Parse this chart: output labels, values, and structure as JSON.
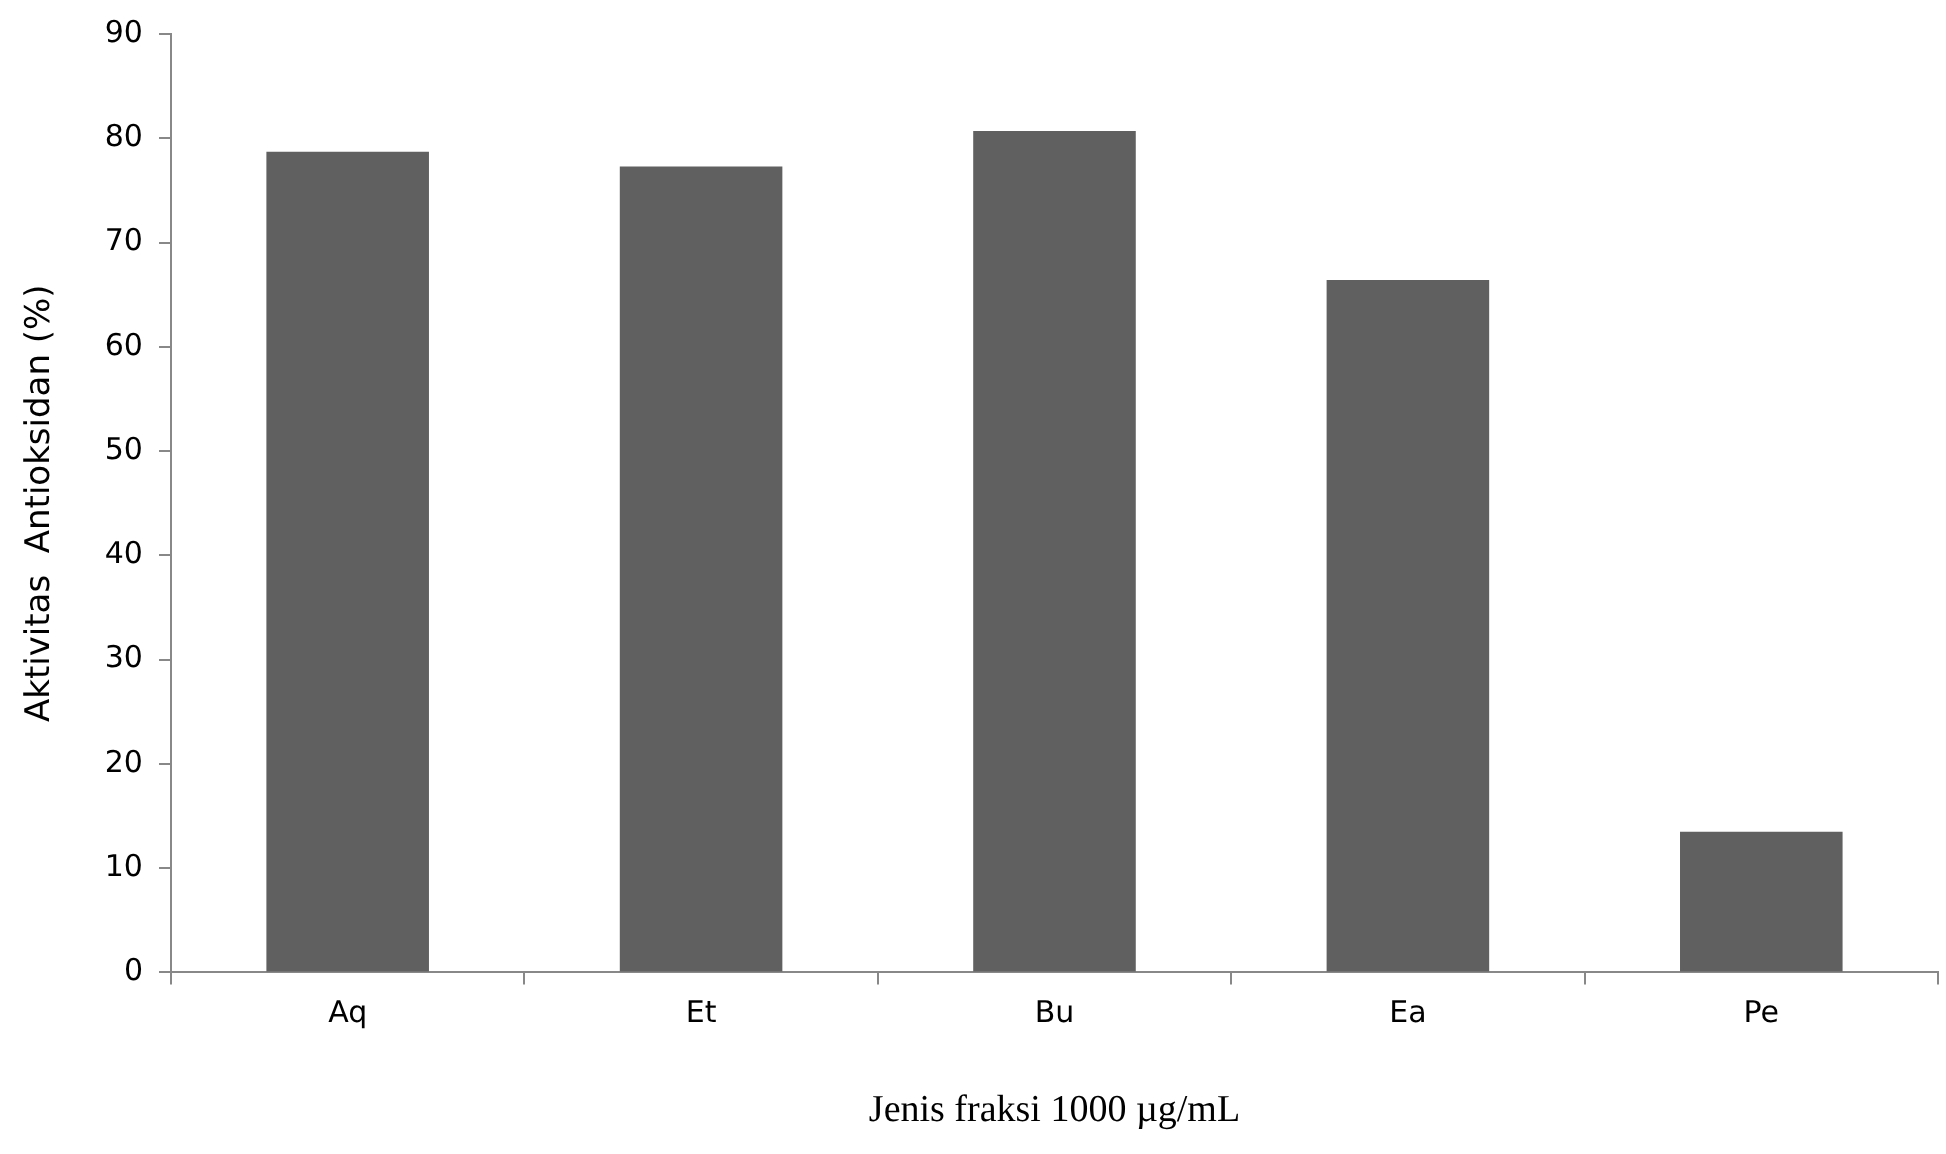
{
  "chart_data": {
    "type": "bar",
    "xlabel": "Jenis fraksi 1000 µg/mL",
    "ylabel": "Aktivitas  Antioksidan (%)",
    "categories": [
      "Aq",
      "Et",
      "Bu",
      "Ea",
      "Pe"
    ],
    "values": [
      78.7,
      77.3,
      80.7,
      66.4,
      13.5
    ],
    "color": "#606060",
    "ylim": [
      0,
      90
    ],
    "yticks": [
      0,
      10,
      20,
      30,
      40,
      50,
      60,
      70,
      80,
      90
    ]
  }
}
